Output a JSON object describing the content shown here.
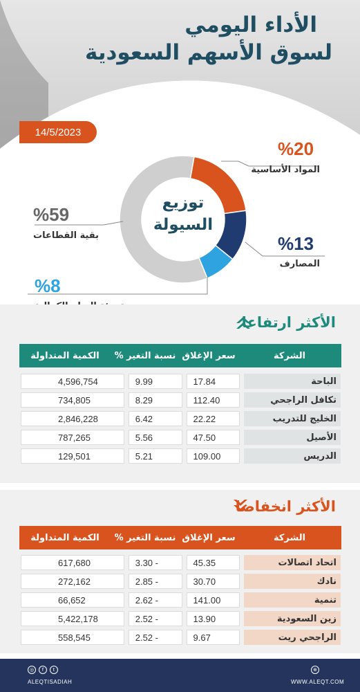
{
  "header": {
    "title_line1": "الأداء اليومي",
    "title_line2": "لسوق الأسهم السعودية",
    "date": "14/5/2023"
  },
  "distribution": {
    "center_line1": "توزيع",
    "center_line2": "السيولة",
    "segments": [
      {
        "pct": "%20",
        "label": "المواد الأساسية",
        "value": 20,
        "color": "#d9531e"
      },
      {
        "pct": "%13",
        "label": "المصارف",
        "value": 13,
        "color": "#1f3b70"
      },
      {
        "pct": "%8",
        "label": "تجزئة السلع الكمالية",
        "value": 8,
        "color": "#2ea3e0"
      },
      {
        "pct": "%59",
        "label": "بقية القطاعات",
        "value": 59,
        "color": "#cfcfcf"
      }
    ]
  },
  "gainers": {
    "title": "الأكثر ارتفاعا",
    "columns": [
      "الشركة",
      "سعر الإغلاق",
      "نسبة التغير %",
      "الكمية المتداولة"
    ],
    "rows": [
      {
        "name": "الباحة",
        "close": "17.84",
        "change": "9.99",
        "volume": "4,596,754"
      },
      {
        "name": "تكافل الراجحي",
        "close": "112.40",
        "change": "8.29",
        "volume": "734,805"
      },
      {
        "name": "الخليج للتدريب",
        "close": "22.22",
        "change": "6.42",
        "volume": "2,846,228"
      },
      {
        "name": "الأصيل",
        "close": "47.50",
        "change": "5.56",
        "volume": "787,265"
      },
      {
        "name": "الدريس",
        "close": "109.00",
        "change": "5.21",
        "volume": "129,501"
      }
    ]
  },
  "losers": {
    "title": "الأكثر انخفاضا",
    "columns": [
      "الشركة",
      "سعر الإغلاق",
      "نسبة التغير %",
      "الكمية المتداولة"
    ],
    "rows": [
      {
        "name": "اتحاد اتصالات",
        "close": "45.35",
        "change": "3.30 -",
        "volume": "617,680"
      },
      {
        "name": "نادك",
        "close": "30.70",
        "change": "2.85 -",
        "volume": "272,162"
      },
      {
        "name": "تنمية",
        "close": "141.00",
        "change": "2.62 -",
        "volume": "66,652"
      },
      {
        "name": "زين السعودية",
        "close": "13.90",
        "change": "2.52 -",
        "volume": "5,422,178"
      },
      {
        "name": "الراجحي ريت",
        "close": "9.67",
        "change": "2.52 -",
        "volume": "558,545"
      }
    ]
  },
  "footer": {
    "social_handle": "ALEQTISADIAH",
    "website": "WWW.ALEQT.COM"
  },
  "colors": {
    "teal": "#1e8a7c",
    "orange": "#d9531e",
    "navy": "#1f3b70",
    "blue": "#2ea3e0",
    "title": "#1f4e62"
  }
}
